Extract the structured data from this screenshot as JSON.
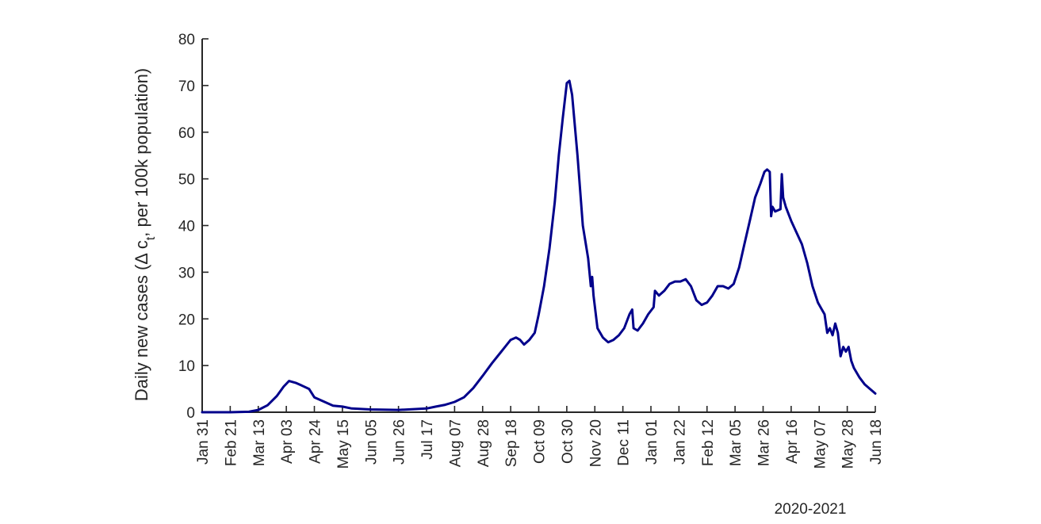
{
  "chart_data": {
    "type": "line",
    "title": "",
    "ylabel": "Daily new cases (Δ c_t, per 100k population)",
    "ylabel_parts": {
      "main": "Daily new cases (Δ c",
      "sub": "t",
      "tail": ", per 100k population)"
    },
    "xlabel": "2020-2021",
    "ylim": [
      0,
      80
    ],
    "yticks": [
      "0",
      "10",
      "20",
      "30",
      "40",
      "50",
      "60",
      "70",
      "80"
    ],
    "xlim": [
      "2020-01-31",
      "2021-06-18"
    ],
    "xtick_dates": [
      "2020-01-31",
      "2020-02-21",
      "2020-03-13",
      "2020-04-03",
      "2020-04-24",
      "2020-05-15",
      "2020-06-05",
      "2020-06-26",
      "2020-07-17",
      "2020-08-07",
      "2020-08-28",
      "2020-09-18",
      "2020-10-09",
      "2020-10-30",
      "2020-11-20",
      "2020-12-11",
      "2021-01-01",
      "2021-01-22",
      "2021-02-12",
      "2021-03-05",
      "2021-03-26",
      "2021-04-16",
      "2021-05-07",
      "2021-05-28",
      "2021-06-18"
    ],
    "xtick_labels": [
      "Jan 31",
      "Feb 21",
      "Mar 13",
      "Apr 03",
      "Apr 24",
      "May 15",
      "Jun 05",
      "Jun 26",
      "Jul 17",
      "Aug 07",
      "Aug 28",
      "Sep 18",
      "Oct 09",
      "Oct 30",
      "Nov 20",
      "Dec 11",
      "Jan 01",
      "Jan 22",
      "Feb 12",
      "Mar 05",
      "Mar 26",
      "Apr 16",
      "May 07",
      "May 28",
      "Jun 18"
    ],
    "grid": false,
    "series": [
      {
        "color": "#00008b",
        "x": [
          "2020-01-31",
          "2020-02-21",
          "2020-03-06",
          "2020-03-13",
          "2020-03-20",
          "2020-03-27",
          "2020-04-01",
          "2020-04-05",
          "2020-04-10",
          "2020-04-14",
          "2020-04-20",
          "2020-04-24",
          "2020-05-01",
          "2020-05-08",
          "2020-05-15",
          "2020-05-22",
          "2020-06-05",
          "2020-06-26",
          "2020-07-17",
          "2020-07-24",
          "2020-07-31",
          "2020-08-07",
          "2020-08-14",
          "2020-08-21",
          "2020-08-28",
          "2020-09-04",
          "2020-09-11",
          "2020-09-18",
          "2020-09-22",
          "2020-09-25",
          "2020-09-28",
          "2020-10-02",
          "2020-10-06",
          "2020-10-09",
          "2020-10-13",
          "2020-10-17",
          "2020-10-21",
          "2020-10-24",
          "2020-10-27",
          "2020-10-30",
          "2020-11-01",
          "2020-11-03",
          "2020-11-07",
          "2020-11-11",
          "2020-11-15",
          "2020-11-17",
          "2020-11-18",
          "2020-11-19",
          "2020-11-22",
          "2020-11-26",
          "2020-11-30",
          "2020-12-04",
          "2020-12-08",
          "2020-12-12",
          "2020-12-16",
          "2020-12-18",
          "2020-12-19",
          "2020-12-22",
          "2020-12-26",
          "2020-12-30",
          "2021-01-03",
          "2021-01-04",
          "2021-01-07",
          "2021-01-11",
          "2021-01-15",
          "2021-01-19",
          "2021-01-23",
          "2021-01-27",
          "2021-01-31",
          "2021-02-04",
          "2021-02-08",
          "2021-02-12",
          "2021-02-16",
          "2021-02-20",
          "2021-02-24",
          "2021-02-28",
          "2021-03-04",
          "2021-03-08",
          "2021-03-12",
          "2021-03-16",
          "2021-03-20",
          "2021-03-24",
          "2021-03-27",
          "2021-03-29",
          "2021-03-31",
          "2021-04-01",
          "2021-04-02",
          "2021-04-04",
          "2021-04-08",
          "2021-04-09",
          "2021-04-10",
          "2021-04-12",
          "2021-04-16",
          "2021-04-20",
          "2021-04-24",
          "2021-04-28",
          "2021-05-02",
          "2021-05-06",
          "2021-05-09",
          "2021-05-11",
          "2021-05-13",
          "2021-05-15",
          "2021-05-17",
          "2021-05-19",
          "2021-05-21",
          "2021-05-23",
          "2021-05-25",
          "2021-05-27",
          "2021-05-29",
          "2021-05-31",
          "2021-06-02",
          "2021-06-06",
          "2021-06-10",
          "2021-06-14",
          "2021-06-18"
        ],
        "y": [
          0,
          0,
          0.1,
          0.5,
          1.5,
          3.5,
          5.5,
          6.7,
          6.3,
          5.8,
          5.0,
          3.2,
          2.3,
          1.4,
          1.2,
          0.8,
          0.6,
          0.5,
          0.8,
          1.2,
          1.6,
          2.2,
          3.2,
          5.2,
          7.8,
          10.5,
          13.0,
          15.5,
          16.0,
          15.5,
          14.5,
          15.5,
          17.0,
          21.0,
          27.0,
          35.0,
          45.0,
          55.0,
          63.0,
          70.5,
          71.0,
          68.0,
          55.0,
          40.0,
          33.0,
          27.0,
          29.0,
          25.0,
          18.0,
          16.0,
          15.0,
          15.5,
          16.5,
          18.0,
          21.0,
          22.0,
          18.0,
          17.5,
          19.0,
          21.0,
          22.5,
          26.0,
          25.0,
          26.0,
          27.5,
          28.0,
          28.0,
          28.5,
          27.0,
          24.0,
          23.0,
          23.5,
          25.0,
          27.0,
          27.0,
          26.5,
          27.5,
          31.0,
          36.0,
          41.0,
          46.0,
          49.0,
          51.5,
          52.0,
          51.5,
          42.0,
          44.0,
          43.0,
          43.5,
          51.0,
          46.0,
          44.0,
          41.0,
          38.5,
          36.0,
          32.0,
          27.0,
          23.5,
          22.0,
          21.0,
          17.0,
          18.0,
          16.5,
          19.0,
          17.0,
          12.0,
          14.0,
          13.0,
          14.0,
          11.0,
          9.5,
          7.5,
          6.0,
          5.0,
          4.0
        ]
      }
    ]
  }
}
